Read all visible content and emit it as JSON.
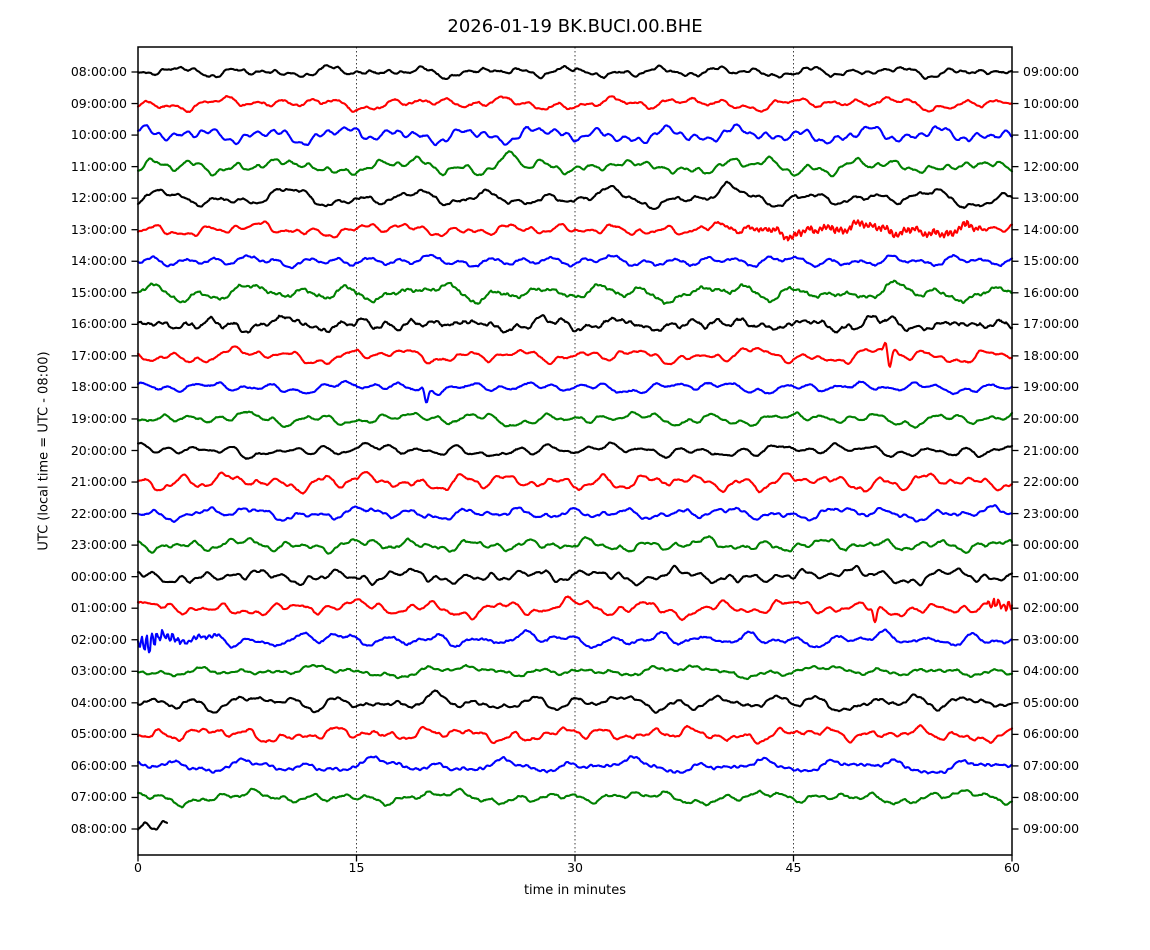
{
  "chart_data": {
    "type": "line",
    "subtype": "seismic-helicorder-dayplot",
    "title": "2026-01-19 BK.BUCI.00.BHE",
    "xlabel": "time in minutes",
    "ylabel": "UTC (local time = UTC - 08:00)",
    "xlim": [
      0,
      60
    ],
    "x_ticks": [
      0,
      15,
      30,
      45,
      60
    ],
    "x_gridlines": [
      15,
      30,
      45
    ],
    "grid_style": "vertical-dotted",
    "legend": "none",
    "colors": {
      "black": "#000000",
      "red": "#ff0000",
      "blue": "#0000ff",
      "green": "#008000"
    },
    "rows": [
      {
        "start": "08:00:00",
        "end": "09:00:00",
        "color": "black",
        "seed": 101,
        "minutes": 60
      },
      {
        "start": "09:00:00",
        "end": "10:00:00",
        "color": "red",
        "seed": 102,
        "minutes": 60
      },
      {
        "start": "10:00:00",
        "end": "11:00:00",
        "color": "blue",
        "seed": 103,
        "minutes": 60
      },
      {
        "start": "11:00:00",
        "end": "12:00:00",
        "color": "green",
        "seed": 104,
        "minutes": 60
      },
      {
        "start": "12:00:00",
        "end": "13:00:00",
        "color": "black",
        "seed": 105,
        "minutes": 60
      },
      {
        "start": "13:00:00",
        "end": "14:00:00",
        "color": "red",
        "seed": 106,
        "minutes": 60
      },
      {
        "start": "14:00:00",
        "end": "15:00:00",
        "color": "blue",
        "seed": 107,
        "minutes": 60
      },
      {
        "start": "15:00:00",
        "end": "16:00:00",
        "color": "green",
        "seed": 108,
        "minutes": 60
      },
      {
        "start": "16:00:00",
        "end": "17:00:00",
        "color": "black",
        "seed": 109,
        "minutes": 60,
        "hf": 1.7
      },
      {
        "start": "17:00:00",
        "end": "18:00:00",
        "color": "red",
        "seed": 110,
        "minutes": 60
      },
      {
        "start": "18:00:00",
        "end": "19:00:00",
        "color": "blue",
        "seed": 111,
        "minutes": 60
      },
      {
        "start": "19:00:00",
        "end": "20:00:00",
        "color": "green",
        "seed": 112,
        "minutes": 60
      },
      {
        "start": "20:00:00",
        "end": "21:00:00",
        "color": "black",
        "seed": 113,
        "minutes": 60
      },
      {
        "start": "21:00:00",
        "end": "22:00:00",
        "color": "red",
        "seed": 114,
        "minutes": 60
      },
      {
        "start": "22:00:00",
        "end": "23:00:00",
        "color": "blue",
        "seed": 115,
        "minutes": 60
      },
      {
        "start": "23:00:00",
        "end": "00:00:00",
        "color": "green",
        "seed": 116,
        "minutes": 60
      },
      {
        "start": "00:00:00",
        "end": "01:00:00",
        "color": "black",
        "seed": 117,
        "minutes": 60
      },
      {
        "start": "01:00:00",
        "end": "02:00:00",
        "color": "red",
        "seed": 118,
        "minutes": 60
      },
      {
        "start": "02:00:00",
        "end": "03:00:00",
        "color": "blue",
        "seed": 119,
        "minutes": 60
      },
      {
        "start": "03:00:00",
        "end": "04:00:00",
        "color": "green",
        "seed": 120,
        "minutes": 60
      },
      {
        "start": "04:00:00",
        "end": "05:00:00",
        "color": "black",
        "seed": 121,
        "minutes": 60
      },
      {
        "start": "05:00:00",
        "end": "06:00:00",
        "color": "red",
        "seed": 122,
        "minutes": 60
      },
      {
        "start": "06:00:00",
        "end": "07:00:00",
        "color": "blue",
        "seed": 123,
        "minutes": 60
      },
      {
        "start": "07:00:00",
        "end": "08:00:00",
        "color": "green",
        "seed": 124,
        "minutes": 60
      },
      {
        "start": "08:00:00",
        "end": "09:00:00",
        "color": "black",
        "seed": 125,
        "minutes": 2
      }
    ],
    "events": [
      {
        "row": 4,
        "type": "peak",
        "t": 25.7,
        "amp": 13,
        "width": 0.45
      },
      {
        "row": 5,
        "type": "peak",
        "t": 40.2,
        "amp": 9,
        "width": 0.6
      },
      {
        "row": 6,
        "type": "tremor",
        "t_start": 38,
        "t_end": 58.5,
        "amp": 2.2
      },
      {
        "row": 10,
        "type": "spike",
        "t": 51.6,
        "amp_up": 11,
        "amp_down": 14
      },
      {
        "row": 11,
        "type": "spike",
        "t": 19.8,
        "amp_up": 2,
        "amp_down": 14
      },
      {
        "row": 17,
        "type": "peak",
        "t": 30.4,
        "amp": 11,
        "width": 0.45
      },
      {
        "row": 17,
        "type": "peak",
        "t": 48.7,
        "amp": 10,
        "width": 0.8
      },
      {
        "row": 18,
        "type": "spike",
        "t": 50.6,
        "amp_up": 3,
        "amp_down": 14
      },
      {
        "row": 18,
        "type": "burst",
        "t_start": 58.2,
        "t_end": 60,
        "amp": 5,
        "decay": false
      },
      {
        "row": 19,
        "type": "burst",
        "t_start": 0,
        "t_end": 5.5,
        "amp": 11,
        "decay": true
      }
    ]
  }
}
